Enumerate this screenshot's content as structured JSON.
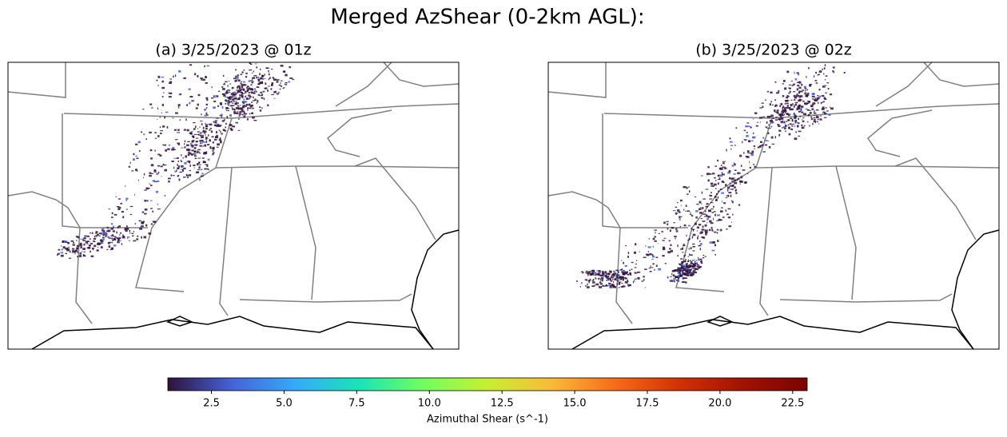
{
  "title": "Merged AzShear (0-2km AGL):",
  "panels": [
    {
      "title": "(a) 3/25/2023 @ 01z"
    },
    {
      "title": "(b) 3/25/2023 @ 02z"
    }
  ],
  "colorbar": {
    "label": "Azimuthal Shear (s^-1)",
    "colormap": "turbo",
    "lim": [
      1,
      23
    ],
    "ticks": [
      2.5,
      {
        "value": 5,
        "label": "5.0"
      },
      7.5,
      {
        "value": 10,
        "label": "10.0"
      },
      12.5,
      {
        "value": 15,
        "label": "15.0"
      },
      17.5,
      {
        "value": 20,
        "label": "20.0"
      },
      22.5
    ]
  }
}
